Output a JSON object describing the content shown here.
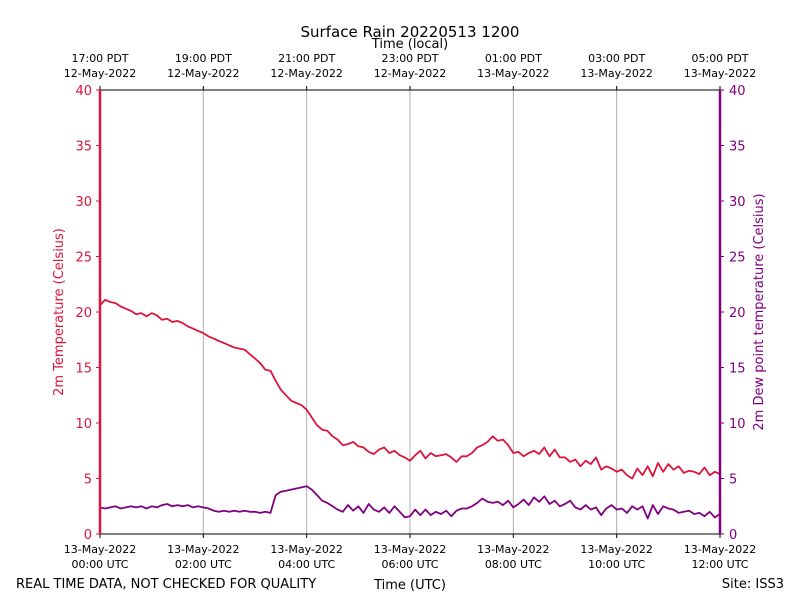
{
  "chart_data": {
    "type": "line",
    "title": "Surface Rain 20220513 1200",
    "top_axis_label": "Time (local)",
    "xlabel": "Time (UTC)",
    "ylabel_left": "2m Temperature (Celsius)",
    "ylabel_right": "2m Dew point temperature (Celsius)",
    "footer_left": "REAL TIME DATA, NOT CHECKED FOR QUALITY",
    "footer_right": "Site: ISS3",
    "x_unit": "hours since 13-May-2022 00:00 UTC",
    "xlim": [
      0,
      12
    ],
    "ylim_left": [
      0,
      40
    ],
    "ylim_right": [
      0,
      40
    ],
    "y_ticks": [
      "0",
      "5",
      "10",
      "15",
      "20",
      "25",
      "30",
      "35",
      "40"
    ],
    "grid": "vertical",
    "bottom_ticks": [
      {
        "x": 0,
        "line1": "13-May-2022",
        "line2": "00:00 UTC"
      },
      {
        "x": 2,
        "line1": "13-May-2022",
        "line2": "02:00 UTC"
      },
      {
        "x": 4,
        "line1": "13-May-2022",
        "line2": "04:00 UTC"
      },
      {
        "x": 6,
        "line1": "13-May-2022",
        "line2": "06:00 UTC"
      },
      {
        "x": 8,
        "line1": "13-May-2022",
        "line2": "08:00 UTC"
      },
      {
        "x": 10,
        "line1": "13-May-2022",
        "line2": "10:00 UTC"
      },
      {
        "x": 12,
        "line1": "13-May-2022",
        "line2": "12:00 UTC"
      }
    ],
    "top_ticks": [
      {
        "x": 0,
        "line1": "17:00 PDT",
        "line2": "12-May-2022"
      },
      {
        "x": 2,
        "line1": "19:00 PDT",
        "line2": "12-May-2022"
      },
      {
        "x": 4,
        "line1": "21:00 PDT",
        "line2": "12-May-2022"
      },
      {
        "x": 6,
        "line1": "23:00 PDT",
        "line2": "12-May-2022"
      },
      {
        "x": 8,
        "line1": "01:00 PDT",
        "line2": "13-May-2022"
      },
      {
        "x": 10,
        "line1": "03:00 PDT",
        "line2": "13-May-2022"
      },
      {
        "x": 12,
        "line1": "05:00 PDT",
        "line2": "13-May-2022"
      }
    ],
    "series": [
      {
        "name": "2m Temperature (Celsius)",
        "axis": "left",
        "color": "#dc143c",
        "points": [
          [
            0.0,
            20.6
          ],
          [
            0.1,
            21.1
          ],
          [
            0.2,
            20.9
          ],
          [
            0.3,
            20.8
          ],
          [
            0.4,
            20.5
          ],
          [
            0.5,
            20.3
          ],
          [
            0.6,
            20.1
          ],
          [
            0.7,
            19.8
          ],
          [
            0.8,
            19.9
          ],
          [
            0.9,
            19.6
          ],
          [
            1.0,
            19.9
          ],
          [
            1.1,
            19.7
          ],
          [
            1.2,
            19.3
          ],
          [
            1.3,
            19.4
          ],
          [
            1.4,
            19.1
          ],
          [
            1.5,
            19.2
          ],
          [
            1.6,
            19.0
          ],
          [
            1.7,
            18.7
          ],
          [
            1.8,
            18.5
          ],
          [
            1.9,
            18.3
          ],
          [
            2.0,
            18.1
          ],
          [
            2.1,
            17.8
          ],
          [
            2.2,
            17.6
          ],
          [
            2.3,
            17.4
          ],
          [
            2.4,
            17.2
          ],
          [
            2.5,
            17.0
          ],
          [
            2.6,
            16.8
          ],
          [
            2.7,
            16.7
          ],
          [
            2.8,
            16.6
          ],
          [
            2.9,
            16.2
          ],
          [
            3.0,
            15.8
          ],
          [
            3.1,
            15.4
          ],
          [
            3.2,
            14.8
          ],
          [
            3.3,
            14.7
          ],
          [
            3.4,
            13.8
          ],
          [
            3.5,
            13.0
          ],
          [
            3.6,
            12.5
          ],
          [
            3.7,
            12.0
          ],
          [
            3.8,
            11.8
          ],
          [
            3.9,
            11.6
          ],
          [
            4.0,
            11.2
          ],
          [
            4.1,
            10.5
          ],
          [
            4.2,
            9.8
          ],
          [
            4.3,
            9.4
          ],
          [
            4.4,
            9.3
          ],
          [
            4.5,
            8.8
          ],
          [
            4.6,
            8.5
          ],
          [
            4.7,
            8.0
          ],
          [
            4.8,
            8.1
          ],
          [
            4.9,
            8.3
          ],
          [
            5.0,
            7.9
          ],
          [
            5.1,
            7.8
          ],
          [
            5.2,
            7.4
          ],
          [
            5.3,
            7.2
          ],
          [
            5.4,
            7.6
          ],
          [
            5.5,
            7.8
          ],
          [
            5.6,
            7.3
          ],
          [
            5.7,
            7.5
          ],
          [
            5.8,
            7.1
          ],
          [
            5.9,
            6.9
          ],
          [
            6.0,
            6.6
          ],
          [
            6.1,
            7.1
          ],
          [
            6.2,
            7.5
          ],
          [
            6.3,
            6.8
          ],
          [
            6.4,
            7.3
          ],
          [
            6.5,
            7.0
          ],
          [
            6.6,
            7.1
          ],
          [
            6.7,
            7.2
          ],
          [
            6.8,
            6.9
          ],
          [
            6.9,
            6.5
          ],
          [
            7.0,
            7.0
          ],
          [
            7.1,
            7.0
          ],
          [
            7.2,
            7.3
          ],
          [
            7.3,
            7.8
          ],
          [
            7.4,
            8.0
          ],
          [
            7.5,
            8.3
          ],
          [
            7.6,
            8.8
          ],
          [
            7.7,
            8.4
          ],
          [
            7.8,
            8.5
          ],
          [
            7.9,
            8.0
          ],
          [
            8.0,
            7.3
          ],
          [
            8.1,
            7.4
          ],
          [
            8.2,
            7.0
          ],
          [
            8.3,
            7.3
          ],
          [
            8.4,
            7.5
          ],
          [
            8.5,
            7.2
          ],
          [
            8.6,
            7.8
          ],
          [
            8.7,
            7.0
          ],
          [
            8.8,
            7.6
          ],
          [
            8.9,
            6.9
          ],
          [
            9.0,
            6.9
          ],
          [
            9.1,
            6.5
          ],
          [
            9.2,
            6.7
          ],
          [
            9.3,
            6.1
          ],
          [
            9.4,
            6.6
          ],
          [
            9.5,
            6.3
          ],
          [
            9.6,
            6.9
          ],
          [
            9.7,
            5.8
          ],
          [
            9.8,
            6.1
          ],
          [
            9.9,
            5.9
          ],
          [
            10.0,
            5.6
          ],
          [
            10.1,
            5.8
          ],
          [
            10.2,
            5.3
          ],
          [
            10.3,
            5.0
          ],
          [
            10.4,
            5.9
          ],
          [
            10.5,
            5.3
          ],
          [
            10.6,
            6.1
          ],
          [
            10.7,
            5.2
          ],
          [
            10.8,
            6.4
          ],
          [
            10.9,
            5.6
          ],
          [
            11.0,
            6.3
          ],
          [
            11.1,
            5.8
          ],
          [
            11.2,
            6.1
          ],
          [
            11.3,
            5.5
          ],
          [
            11.4,
            5.7
          ],
          [
            11.5,
            5.6
          ],
          [
            11.6,
            5.4
          ],
          [
            11.7,
            6.0
          ],
          [
            11.8,
            5.3
          ],
          [
            11.9,
            5.6
          ],
          [
            12.0,
            5.4
          ]
        ]
      },
      {
        "name": "2m Dew point temperature (Celsius)",
        "axis": "right",
        "color": "#800080",
        "points": [
          [
            0.0,
            2.4
          ],
          [
            0.1,
            2.3
          ],
          [
            0.2,
            2.4
          ],
          [
            0.3,
            2.5
          ],
          [
            0.4,
            2.3
          ],
          [
            0.5,
            2.4
          ],
          [
            0.6,
            2.5
          ],
          [
            0.7,
            2.4
          ],
          [
            0.8,
            2.5
          ],
          [
            0.9,
            2.3
          ],
          [
            1.0,
            2.5
          ],
          [
            1.1,
            2.4
          ],
          [
            1.2,
            2.6
          ],
          [
            1.3,
            2.7
          ],
          [
            1.4,
            2.5
          ],
          [
            1.5,
            2.6
          ],
          [
            1.6,
            2.5
          ],
          [
            1.7,
            2.6
          ],
          [
            1.8,
            2.4
          ],
          [
            1.9,
            2.5
          ],
          [
            2.0,
            2.4
          ],
          [
            2.1,
            2.3
          ],
          [
            2.2,
            2.1
          ],
          [
            2.3,
            2.0
          ],
          [
            2.4,
            2.1
          ],
          [
            2.5,
            2.0
          ],
          [
            2.6,
            2.1
          ],
          [
            2.7,
            2.0
          ],
          [
            2.8,
            2.1
          ],
          [
            2.9,
            2.0
          ],
          [
            3.0,
            2.0
          ],
          [
            3.1,
            1.9
          ],
          [
            3.2,
            2.0
          ],
          [
            3.3,
            1.9
          ],
          [
            3.4,
            3.5
          ],
          [
            3.5,
            3.8
          ],
          [
            3.6,
            3.9
          ],
          [
            3.7,
            4.0
          ],
          [
            3.8,
            4.1
          ],
          [
            3.9,
            4.2
          ],
          [
            4.0,
            4.3
          ],
          [
            4.1,
            4.0
          ],
          [
            4.2,
            3.5
          ],
          [
            4.3,
            3.0
          ],
          [
            4.4,
            2.8
          ],
          [
            4.5,
            2.5
          ],
          [
            4.6,
            2.2
          ],
          [
            4.7,
            2.0
          ],
          [
            4.8,
            2.6
          ],
          [
            4.9,
            2.1
          ],
          [
            5.0,
            2.5
          ],
          [
            5.1,
            1.9
          ],
          [
            5.2,
            2.7
          ],
          [
            5.3,
            2.2
          ],
          [
            5.4,
            2.0
          ],
          [
            5.5,
            2.4
          ],
          [
            5.6,
            1.9
          ],
          [
            5.7,
            2.5
          ],
          [
            5.8,
            2.0
          ],
          [
            5.9,
            1.5
          ],
          [
            6.0,
            1.6
          ],
          [
            6.1,
            2.2
          ],
          [
            6.2,
            1.7
          ],
          [
            6.3,
            2.2
          ],
          [
            6.4,
            1.7
          ],
          [
            6.5,
            2.0
          ],
          [
            6.6,
            1.8
          ],
          [
            6.7,
            2.1
          ],
          [
            6.8,
            1.6
          ],
          [
            6.9,
            2.1
          ],
          [
            7.0,
            2.3
          ],
          [
            7.1,
            2.3
          ],
          [
            7.2,
            2.5
          ],
          [
            7.3,
            2.8
          ],
          [
            7.4,
            3.2
          ],
          [
            7.5,
            2.9
          ],
          [
            7.6,
            2.8
          ],
          [
            7.7,
            2.9
          ],
          [
            7.8,
            2.6
          ],
          [
            7.9,
            3.0
          ],
          [
            8.0,
            2.4
          ],
          [
            8.1,
            2.7
          ],
          [
            8.2,
            3.1
          ],
          [
            8.3,
            2.6
          ],
          [
            8.4,
            3.3
          ],
          [
            8.5,
            2.9
          ],
          [
            8.6,
            3.4
          ],
          [
            8.7,
            2.7
          ],
          [
            8.8,
            3.0
          ],
          [
            8.9,
            2.5
          ],
          [
            9.0,
            2.7
          ],
          [
            9.1,
            3.0
          ],
          [
            9.2,
            2.4
          ],
          [
            9.3,
            2.2
          ],
          [
            9.4,
            2.6
          ],
          [
            9.5,
            2.2
          ],
          [
            9.6,
            2.4
          ],
          [
            9.7,
            1.7
          ],
          [
            9.8,
            2.3
          ],
          [
            9.9,
            2.6
          ],
          [
            10.0,
            2.2
          ],
          [
            10.1,
            2.3
          ],
          [
            10.2,
            1.9
          ],
          [
            10.3,
            2.5
          ],
          [
            10.4,
            2.2
          ],
          [
            10.5,
            2.5
          ],
          [
            10.6,
            1.4
          ],
          [
            10.7,
            2.6
          ],
          [
            10.8,
            1.8
          ],
          [
            10.9,
            2.5
          ],
          [
            11.0,
            2.3
          ],
          [
            11.1,
            2.2
          ],
          [
            11.2,
            1.9
          ],
          [
            11.3,
            2.0
          ],
          [
            11.4,
            2.1
          ],
          [
            11.5,
            1.8
          ],
          [
            11.6,
            1.9
          ],
          [
            11.7,
            1.6
          ],
          [
            11.8,
            2.0
          ],
          [
            11.9,
            1.5
          ],
          [
            12.0,
            1.8
          ]
        ]
      }
    ]
  }
}
